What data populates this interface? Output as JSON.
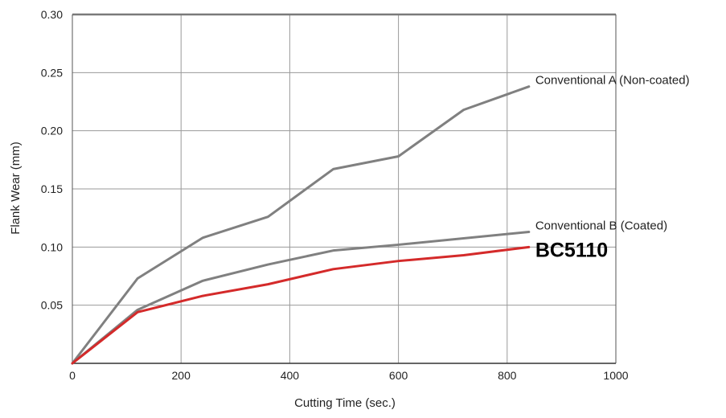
{
  "chart_data": {
    "type": "line",
    "title": "",
    "xlabel": "Cutting Time (sec.)",
    "ylabel": "Flank Wear (mm)",
    "xlim": [
      0,
      1000
    ],
    "ylim": [
      0,
      0.3
    ],
    "x_ticks": [
      0,
      200,
      400,
      600,
      800,
      1000
    ],
    "x_tick_labels": [
      "0",
      "200",
      "400",
      "600",
      "800",
      "1000"
    ],
    "y_ticks": [
      0.05,
      0.1,
      0.15,
      0.2,
      0.25,
      0.3
    ],
    "y_tick_labels": [
      "0.05",
      "0.10",
      "0.15",
      "0.20",
      "0.25",
      "0.30"
    ],
    "grid": true,
    "legend": "inline labels at line ends",
    "series": [
      {
        "name": "Conventional A (Non-coated)",
        "color": "#808080",
        "x": [
          0,
          120,
          240,
          360,
          480,
          600,
          720,
          840
        ],
        "y": [
          0,
          0.073,
          0.108,
          0.126,
          0.167,
          0.178,
          0.218,
          0.238
        ]
      },
      {
        "name": "Conventional B (Coated)",
        "color": "#808080",
        "x": [
          0,
          120,
          240,
          360,
          480,
          600,
          840
        ],
        "y": [
          0,
          0.046,
          0.071,
          0.085,
          0.097,
          0.102,
          0.113
        ]
      },
      {
        "name": "BC5110",
        "color": "#d42a2a",
        "x": [
          0,
          120,
          240,
          360,
          480,
          600,
          720,
          840
        ],
        "y": [
          0,
          0.044,
          0.058,
          0.068,
          0.081,
          0.088,
          0.093,
          0.1
        ]
      }
    ]
  }
}
